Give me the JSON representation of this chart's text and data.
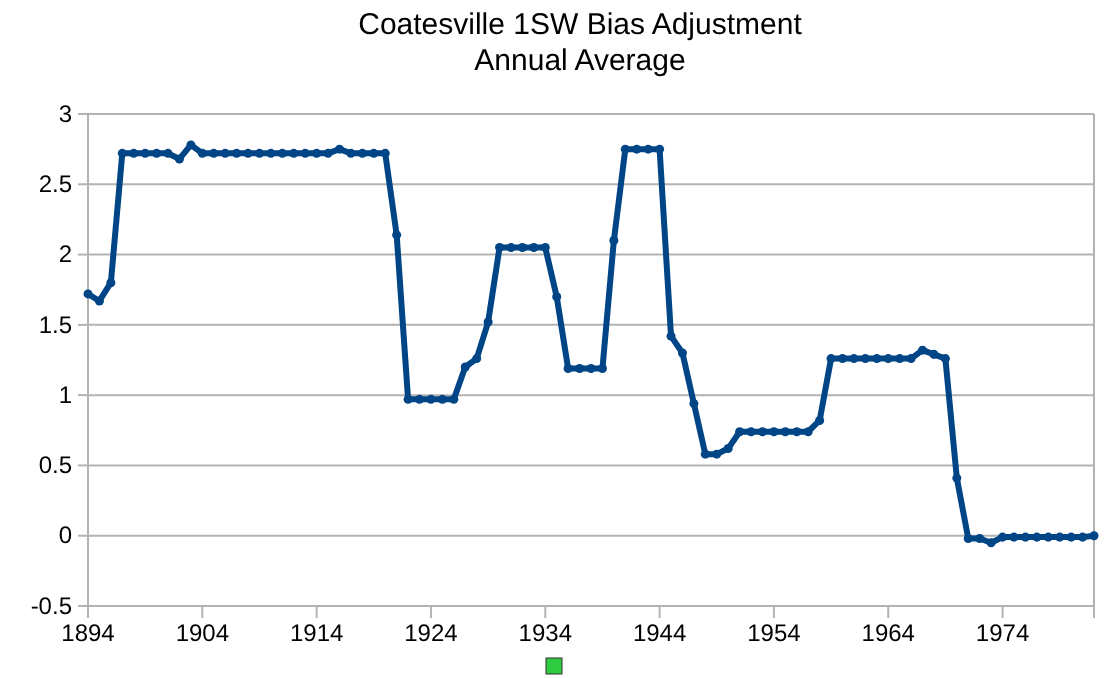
{
  "chart_data": {
    "type": "line",
    "title": "Coatesville 1SW Bias Adjustment",
    "subtitle": "Annual Average",
    "x": [
      1894,
      1895,
      1896,
      1897,
      1898,
      1899,
      1900,
      1901,
      1902,
      1903,
      1904,
      1905,
      1906,
      1907,
      1908,
      1909,
      1910,
      1911,
      1912,
      1913,
      1914,
      1915,
      1916,
      1917,
      1918,
      1919,
      1920,
      1921,
      1922,
      1923,
      1924,
      1925,
      1926,
      1927,
      1928,
      1929,
      1930,
      1931,
      1932,
      1933,
      1934,
      1935,
      1936,
      1937,
      1938,
      1939,
      1940,
      1941,
      1942,
      1943,
      1944,
      1945,
      1946,
      1947,
      1948,
      1949,
      1950,
      1951,
      1952,
      1953,
      1954,
      1955,
      1956,
      1957,
      1958,
      1959,
      1960,
      1961,
      1962,
      1963,
      1964,
      1965,
      1966,
      1967,
      1968,
      1969,
      1970,
      1971,
      1972,
      1973,
      1974,
      1975,
      1976,
      1977,
      1978,
      1979,
      1980,
      1981,
      1982
    ],
    "series": [
      {
        "color": "#004586",
        "values": [
          1.72,
          1.67,
          1.8,
          2.72,
          2.72,
          2.72,
          2.72,
          2.72,
          2.68,
          2.78,
          2.72,
          2.72,
          2.72,
          2.72,
          2.72,
          2.72,
          2.72,
          2.72,
          2.72,
          2.72,
          2.72,
          2.72,
          2.75,
          2.72,
          2.72,
          2.72,
          2.72,
          2.14,
          0.97,
          0.97,
          0.97,
          0.97,
          0.97,
          1.2,
          1.26,
          1.52,
          2.05,
          2.05,
          2.05,
          2.05,
          2.05,
          1.7,
          1.19,
          1.19,
          1.19,
          1.19,
          2.1,
          2.75,
          2.75,
          2.75,
          2.75,
          1.42,
          1.3,
          0.94,
          0.58,
          0.58,
          0.62,
          0.74,
          0.74,
          0.74,
          0.74,
          0.74,
          0.74,
          0.74,
          0.82,
          1.26,
          1.26,
          1.26,
          1.26,
          1.26,
          1.26,
          1.26,
          1.26,
          1.32,
          1.29,
          1.26,
          0.41,
          -0.02,
          -0.02,
          -0.05,
          -0.01,
          -0.01,
          -0.01,
          -0.01,
          -0.01,
          -0.01,
          -0.01,
          -0.01,
          0
        ]
      }
    ],
    "xlim": [
      1894,
      1982
    ],
    "xticks": [
      1894,
      1904,
      1914,
      1924,
      1934,
      1944,
      1954,
      1964,
      1974
    ],
    "ylim": [
      -0.5,
      3
    ],
    "yticks": [
      -0.5,
      0,
      0.5,
      1,
      1.5,
      2,
      2.5,
      3
    ],
    "grid": "y",
    "marker": "circle",
    "line_style": "solid"
  }
}
